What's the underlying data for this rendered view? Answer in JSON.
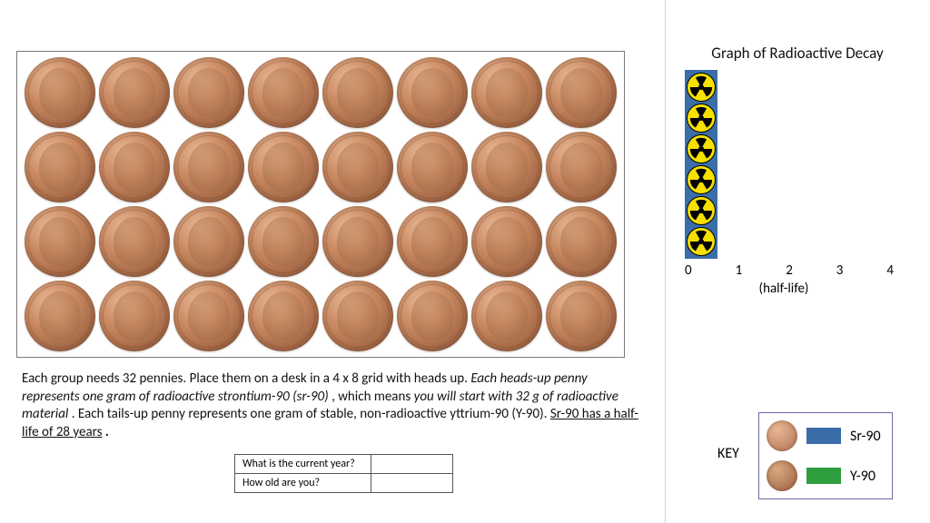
{
  "grid": {
    "rows": 4,
    "cols": 8
  },
  "instructions": {
    "p1a": "Each group needs 32 pennies.  Place them on a desk in a 4 x 8 grid with heads up.  ",
    "p1b_italic": "Each heads-up penny represents one gram of radioactive strontium-90 (sr-90)",
    "p1c": ", which means ",
    "p1d_italic": "you will start with 32 g of radioactive material",
    "p1e": ".  Each tails-up penny represents one gram of stable, non-radioactive yttrium-90 (Y-90).  ",
    "p1f_underline": "Sr-90 has a half-life of 28 years",
    "p1g": "."
  },
  "questions": {
    "q1": "What is the current year?",
    "q2": "How old are you?"
  },
  "chart": {
    "title": "Graph of Radioactive Decay",
    "bar0_count": 6,
    "x_ticks": [
      "0",
      "1",
      "2",
      "3",
      "4"
    ],
    "x_label": "(half-life)",
    "bar_bg": "#3b6ea8",
    "icon_fill": "#f5e000",
    "icon_stroke": "#000000"
  },
  "key": {
    "label": "KEY",
    "sr_color": "#3b6ea8",
    "sr_text": "Sr-90",
    "y_color": "#2e9e3f",
    "y_text": "Y-90"
  }
}
